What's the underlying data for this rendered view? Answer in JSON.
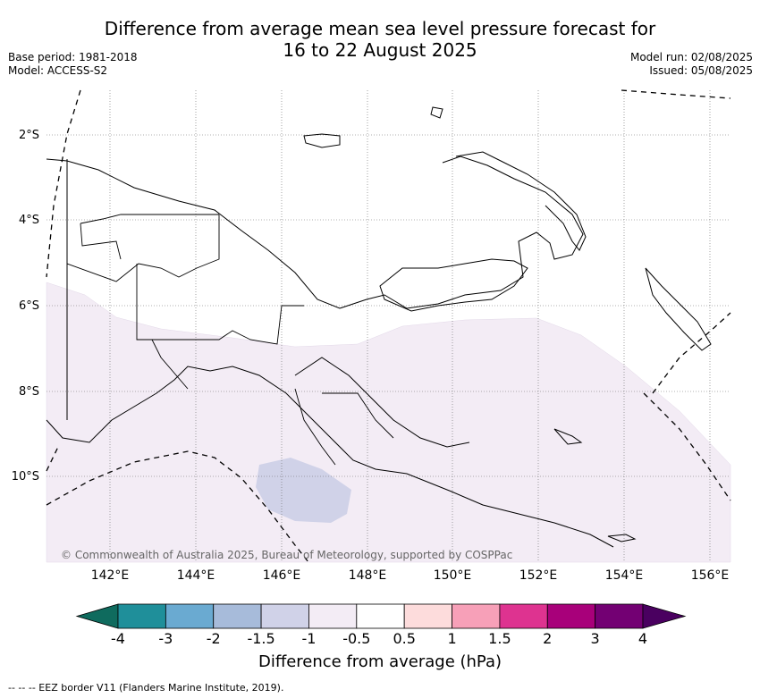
{
  "title": {
    "line1": "Difference from average mean sea level pressure forecast for",
    "line2": "16 to 22 August 2025"
  },
  "meta_left": {
    "base_period": "Base period: 1981-2018",
    "model": "Model: ACCESS-S2"
  },
  "meta_right": {
    "model_run": "Model run: 02/08/2025",
    "issued": "Issued: 05/08/2025"
  },
  "map": {
    "lat_labels": [
      "2°S",
      "4°S",
      "6°S",
      "8°S",
      "10°S"
    ],
    "lon_labels": [
      "142°E",
      "144°E",
      "146°E",
      "148°E",
      "150°E",
      "152°E",
      "154°E",
      "156°E"
    ],
    "copyright": "© Commonwealth of Australia 2025, Bureau of Meteorology, supported by COSPPac",
    "shading": [
      {
        "category": "-1 to -0.5",
        "color": "#f3ecf5"
      },
      {
        "category": "-1.5 to -1",
        "color": "#d0d2e8"
      }
    ]
  },
  "colorbar": {
    "label": "Difference from average (hPa)",
    "ticks": [
      "-4",
      "-3",
      "-2",
      "-1.5",
      "-1",
      "-0.5",
      "0.5",
      "1",
      "1.5",
      "2",
      "3",
      "4"
    ],
    "colors": [
      "#0f6b5e",
      "#1f8f9a",
      "#6aaad1",
      "#a7bbda",
      "#d0d2e8",
      "#f3ecf5",
      "#ffffff",
      "#fddcdc",
      "#f7a0b8",
      "#de3390",
      "#a8007a",
      "#730073",
      "#4a0060"
    ]
  },
  "eez_note": "--  --  -- EEZ border V11 (Flanders Marine Institute, 2019)."
}
